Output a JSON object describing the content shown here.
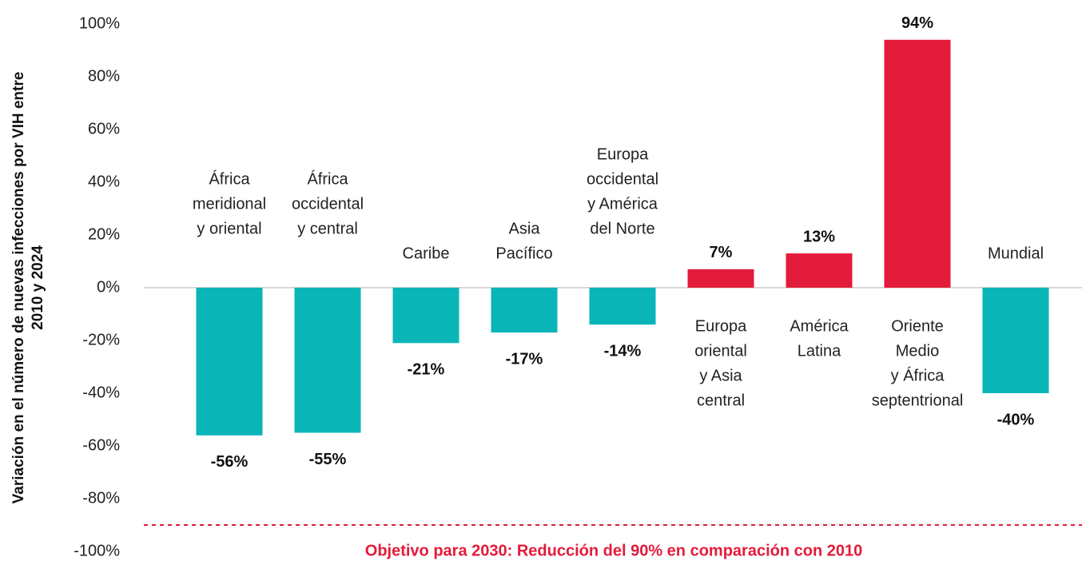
{
  "chart_data": {
    "type": "bar",
    "ylabel": [
      "Variación en el número de nuevas infecciones por VIH entre",
      "2010 y 2024"
    ],
    "categories": [
      [
        "África",
        "meridional",
        "y oriental"
      ],
      [
        "África",
        "occidental",
        "y central"
      ],
      [
        "Caribe"
      ],
      [
        "Asia",
        "Pacífico"
      ],
      [
        "Europa",
        "occidental",
        "y América",
        "del Norte"
      ],
      [
        "Europa",
        "oriental",
        "y Asia",
        "central"
      ],
      [
        "América",
        "Latina"
      ],
      [
        "Oriente",
        "Medio",
        "y África",
        "septentrional"
      ],
      [
        "Mundial"
      ]
    ],
    "values": [
      -56,
      -55,
      -21,
      -17,
      -14,
      7,
      13,
      94,
      -40
    ],
    "value_labels": [
      "-56%",
      "-55%",
      "-21%",
      "-17%",
      "-14%",
      "7%",
      "13%",
      "94%",
      "-40%"
    ],
    "colors": [
      "#0ab5b8",
      "#0ab5b8",
      "#0ab5b8",
      "#0ab5b8",
      "#0ab5b8",
      "#e31b3a",
      "#e31b3a",
      "#e31b3a",
      "#0ab5b8"
    ],
    "ylim": [
      -100,
      100
    ],
    "yticks": [
      {
        "value": 100,
        "label": "100%"
      },
      {
        "value": 80,
        "label": "80%"
      },
      {
        "value": 60,
        "label": "60%"
      },
      {
        "value": 40,
        "label": "40%"
      },
      {
        "value": 20,
        "label": "20%"
      },
      {
        "value": 0,
        "label": "0%"
      },
      {
        "value": -20,
        "label": "-20%"
      },
      {
        "value": -40,
        "label": "-40%"
      },
      {
        "value": -60,
        "label": "-60%"
      },
      {
        "value": -80,
        "label": "-80%"
      },
      {
        "value": -100,
        "label": "-100%"
      }
    ],
    "target": {
      "value": -90,
      "label": "Objetivo para 2030: Reducción del 90% en comparación con 2010",
      "color": "#e31b3a"
    }
  }
}
